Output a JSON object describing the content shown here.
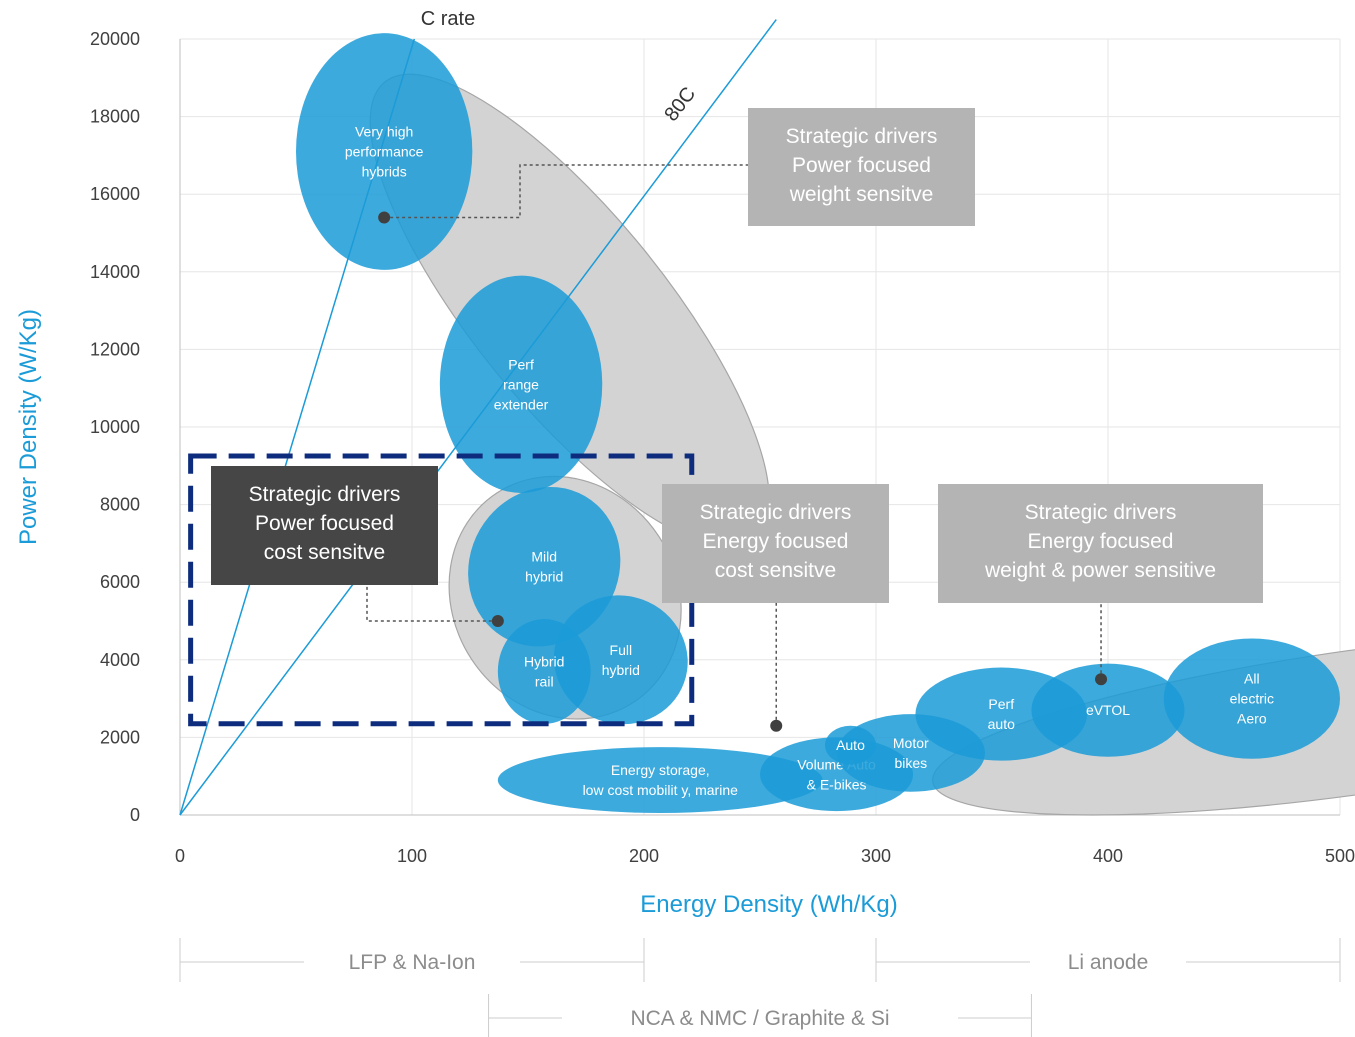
{
  "chart_data": {
    "type": "scatter",
    "xlabel": "Energy Density (Wh/Kg)",
    "ylabel": "Power Density (W/Kg)",
    "xlim": [
      0,
      500
    ],
    "ylim": [
      0,
      20000
    ],
    "x_ticks": [
      "0",
      "100",
      "200",
      "300",
      "400",
      "500"
    ],
    "y_ticks": [
      "0",
      "2000",
      "4000",
      "6000",
      "8000",
      "10000",
      "12000",
      "14000",
      "16000",
      "18000",
      "20000"
    ],
    "grid": true,
    "reference_lines": [
      {
        "label": "C rate",
        "points": [
          [
            0,
            0
          ],
          [
            101,
            20000
          ]
        ]
      },
      {
        "label": "80C",
        "points": [
          [
            0,
            0
          ],
          [
            257,
            20500
          ]
        ]
      }
    ],
    "gray_groups": [
      {
        "cx": 168,
        "cy": 13000,
        "rx": 185,
        "ry": 7550,
        "angle": 0
      },
      {
        "cx": 166,
        "cy": 5600,
        "rx": 96,
        "ry": 3300,
        "angle": 0
      },
      {
        "cx": 508,
        "cy": 2400,
        "rx": 255,
        "ry": 1800,
        "angle": 0
      }
    ],
    "applications": [
      {
        "lines": [
          "Very high",
          "performance",
          "hybrids"
        ],
        "x": 88,
        "y": 17100,
        "rx": 38,
        "ry": 3050
      },
      {
        "lines": [
          "Perf",
          "range",
          "extender"
        ],
        "x": 147,
        "y": 11100,
        "rx": 35,
        "ry": 2800
      },
      {
        "lines": [
          "Mild",
          "hybrid"
        ],
        "x": 157,
        "y": 6400,
        "rx": 32,
        "ry": 2100
      },
      {
        "lines": [
          "Full",
          "hybrid"
        ],
        "x": 190,
        "y": 4000,
        "rx": 29,
        "ry": 1650
      },
      {
        "lines": [
          "Hybrid",
          "rail"
        ],
        "x": 157,
        "y": 3700,
        "rx": 20,
        "ry": 1350
      },
      {
        "lines": [
          "Energy storage,",
          "low cost mobilit y, marine"
        ],
        "x": 207,
        "y": 900,
        "rx": 70,
        "ry": 850
      },
      {
        "lines": [
          "Volume Auto",
          "& E-bikes"
        ],
        "x": 283,
        "y": 1050,
        "rx": 33,
        "ry": 950
      },
      {
        "lines": [
          "Motor",
          "bikes"
        ],
        "x": 315,
        "y": 1600,
        "rx": 32,
        "ry": 1000
      },
      {
        "lines": [
          "Auto"
        ],
        "x": 289,
        "y": 1800,
        "rx": 11,
        "ry": 500
      },
      {
        "lines": [
          "Perf",
          "auto"
        ],
        "x": 354,
        "y": 2600,
        "rx": 37,
        "ry": 1200
      },
      {
        "lines": [
          "eVTOL"
        ],
        "x": 400,
        "y": 2700,
        "rx": 33,
        "ry": 1200
      },
      {
        "lines": [
          "All",
          "electric",
          "Aero"
        ],
        "x": 462,
        "y": 3000,
        "rx": 38,
        "ry": 1550
      }
    ],
    "driver_boxes": [
      {
        "lines": [
          "Strategic drivers",
          "Power focused",
          "weight sensitve"
        ],
        "style": "light",
        "points_to": [
          88,
          15400
        ]
      },
      {
        "lines": [
          "Strategic drivers",
          "Power focused",
          "cost sensitve"
        ],
        "style": "dark",
        "points_to": [
          137,
          5000
        ],
        "dashed_region": [
          [
            2,
            2300
          ],
          [
            218,
            9200
          ]
        ]
      },
      {
        "lines": [
          "Strategic drivers",
          "Energy focused",
          "cost sensitve"
        ],
        "style": "light",
        "points_to": [
          257,
          2300
        ]
      },
      {
        "lines": [
          "Strategic drivers",
          "Energy focused",
          "weight & power sensitive"
        ],
        "style": "light",
        "points_to": [
          397,
          3500
        ]
      }
    ],
    "chemistry_ranges": [
      {
        "label": "LFP & Na-Ion",
        "x_range": [
          0,
          200
        ]
      },
      {
        "label": "NCA & NMC / Graphite & Si",
        "x_range": [
          133,
          367
        ]
      },
      {
        "label": "Li anode",
        "x_range": [
          300,
          500
        ]
      }
    ],
    "colors": {
      "bubble": "#1b9bd7",
      "group": "#d3d3d3",
      "box_light": "#b4b4b4",
      "box_dark": "#464646",
      "dashed_region": "#0d2c7e",
      "axis_title": "#1b9bd7",
      "reference_line": "#1b9bd7"
    }
  }
}
